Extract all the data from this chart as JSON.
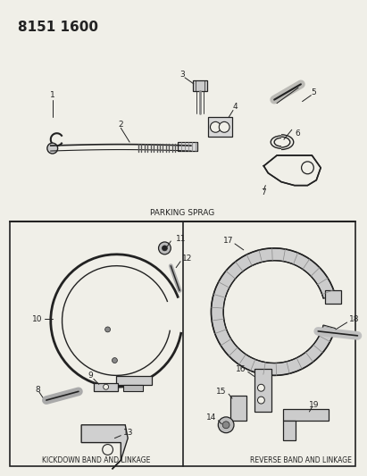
{
  "title": "8151 1600",
  "bg": "#f0efe8",
  "white": "#ffffff",
  "lc": "#222222",
  "tc": "#222222",
  "parking_sprag_label": "PARKING SPRAG",
  "kickdown_label": "KICKDOWN BAND AND LINKAGE",
  "reverse_label": "REVERSE BAND AND LINKAGE"
}
